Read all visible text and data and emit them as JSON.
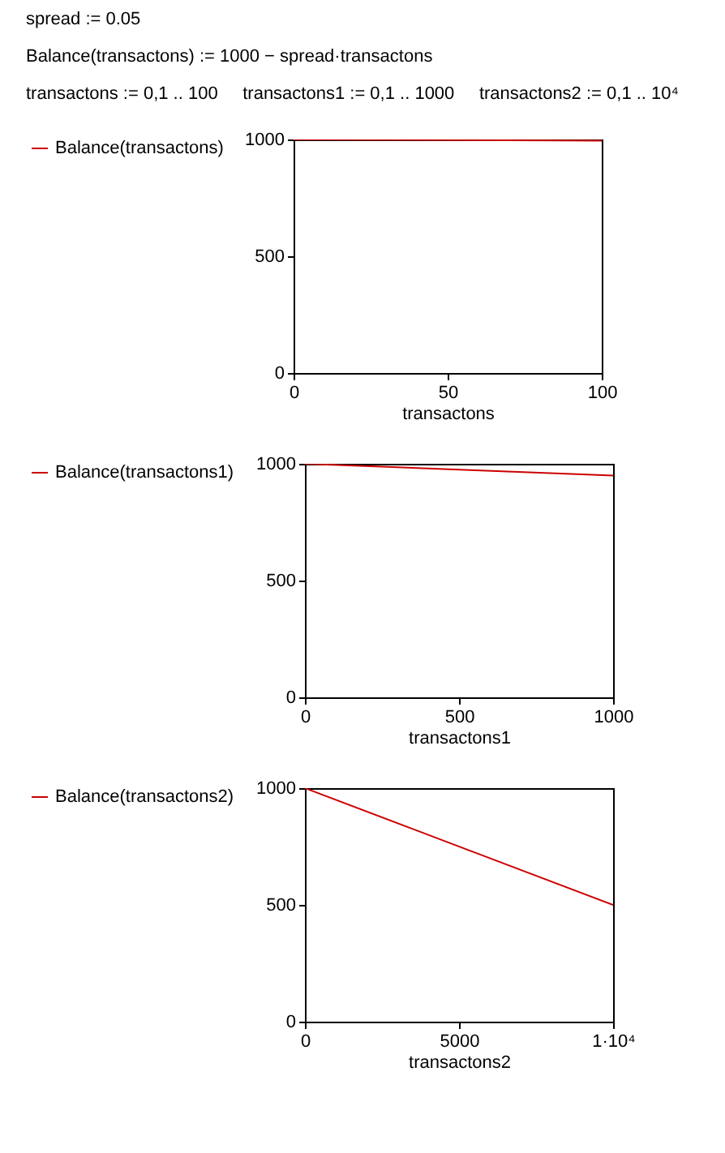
{
  "chart_data": [
    {
      "type": "line",
      "annotations": [
        "spread := 0.05",
        "Balance(transactons) := 1000 − spread·transactons",
        "transactons := 0,1 .. 100     transactons1 := 0,1 .. 1000     transactons2 := 0,1 .. 10⁴"
      ],
      "xlabel": "transactons",
      "x": [
        0,
        100
      ],
      "series": [
        {
          "name": "Balance(transactons)",
          "color": "#cc0000",
          "values": [
            1000,
            995
          ]
        }
      ],
      "xlim": [
        0,
        100
      ],
      "xticks": [
        0,
        50,
        100
      ],
      "ylim": [
        0,
        1000
      ],
      "yticks": [
        0,
        500,
        1000
      ],
      "legend": "left"
    },
    {
      "type": "line",
      "xlabel": "transactons1",
      "x": [
        0,
        1000
      ],
      "series": [
        {
          "name": "Balance(transactons1)",
          "color": "#cc0000",
          "values": [
            1000,
            950
          ]
        }
      ],
      "xlim": [
        0,
        1000
      ],
      "xticks": [
        0,
        500,
        1000
      ],
      "ylim": [
        0,
        1000
      ],
      "yticks": [
        0,
        500,
        1000
      ],
      "legend": "left"
    },
    {
      "type": "line",
      "xlabel": "transactons2",
      "x": [
        0,
        10000
      ],
      "series": [
        {
          "name": "Balance(transactons2)",
          "color": "#cc0000",
          "values": [
            1000,
            500
          ]
        }
      ],
      "xlim": [
        0,
        10000
      ],
      "xticks": [
        0,
        5000,
        {
          "value": 10000,
          "label": "1·10⁴"
        }
      ],
      "ylim": [
        0,
        1000
      ],
      "yticks": [
        0,
        500,
        1000
      ],
      "legend": "left"
    }
  ]
}
